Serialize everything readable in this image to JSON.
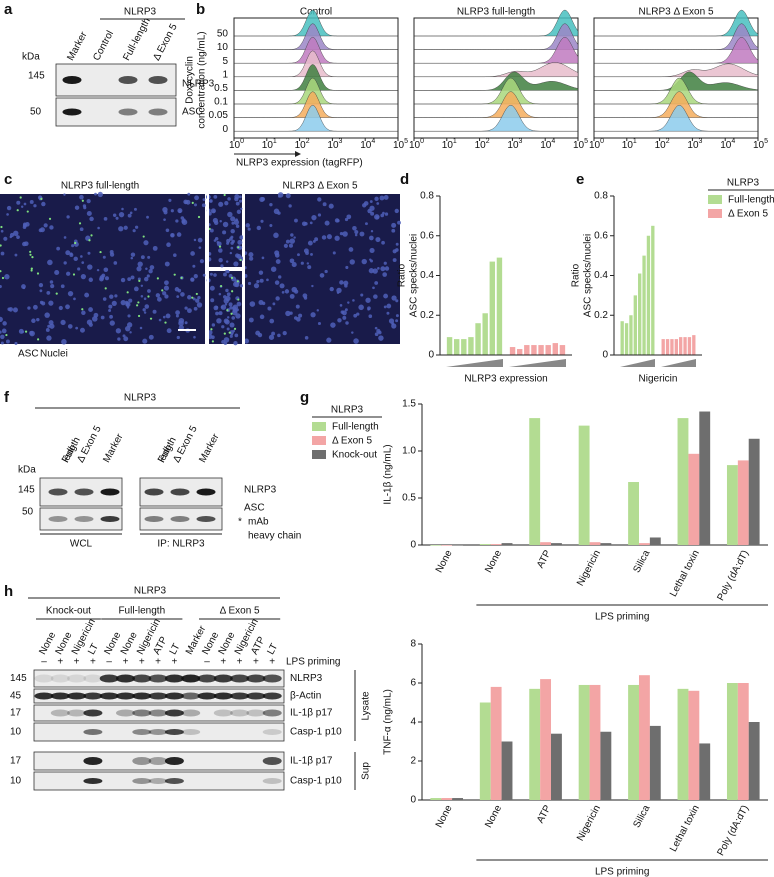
{
  "panel_labels": [
    "a",
    "b",
    "c",
    "d",
    "e",
    "f",
    "g",
    "h"
  ],
  "panel_a": {
    "group": "NLRP3",
    "lanes": [
      "Marker",
      "Control",
      "Full-length",
      "Δ Exon 5"
    ],
    "kda_label": "kDa",
    "markers": [
      "145",
      "50"
    ],
    "bands": [
      "NLRP3",
      "ASC"
    ]
  },
  "panel_b": {
    "y_axis_label": [
      "Doxycyclin",
      "concentration (ng/mL)"
    ],
    "x_axis_label": "NLRP3 expression (tagRFP)",
    "panels": [
      "Control",
      "NLRP3 full-length",
      "NLRP3 Δ Exon 5"
    ],
    "concentrations": [
      "50",
      "10",
      "5",
      "1",
      "0.5",
      "0.1",
      "0.05",
      "0"
    ],
    "x_tick_labels": [
      {
        "base": "10",
        "exponent": "0"
      },
      {
        "base": "10",
        "exponent": "1"
      },
      {
        "base": "10",
        "exponent": "2"
      },
      {
        "base": "10",
        "exponent": "3"
      },
      {
        "base": "10",
        "exponent": "4"
      },
      {
        "base": "10",
        "exponent": "5"
      }
    ]
  },
  "panel_c": {
    "titles": [
      "NLRP3 full-length",
      "NLRP3 Δ Exon 5"
    ],
    "stains": [
      "ASC",
      "Nuclei"
    ]
  },
  "panel_f": {
    "group": "NLRP3",
    "lanes": [
      [
        "Full-",
        "length"
      ],
      [
        "Δ Exon 5"
      ],
      [
        "Marker"
      ],
      [
        "Full-",
        "length"
      ],
      [
        "Δ Exon 5"
      ],
      [
        "Marker"
      ]
    ],
    "kda_label": "kDa",
    "markers": [
      "145",
      "50"
    ],
    "bands": [
      "NLRP3",
      "ASC"
    ],
    "asterisk": "*",
    "note": [
      "mAb",
      "heavy chain"
    ],
    "footers": [
      "WCL",
      "IP: NLRP3"
    ]
  },
  "panel_h": {
    "group": "NLRP3",
    "genotypes": [
      "Knock-out",
      "Full-length",
      "Δ Exon 5"
    ],
    "lanes": [
      "None",
      "None",
      "Nigericin",
      "LT",
      "None",
      "None",
      "Nigericin",
      "ATP",
      "LT",
      "Marker",
      "None",
      "None",
      "Nigericin",
      "ATP",
      "LT"
    ],
    "lps": [
      "–",
      "+",
      "+",
      "+",
      "–",
      "+",
      "+",
      "+",
      "+",
      null,
      "–",
      "+",
      "+",
      "+",
      "+"
    ],
    "lps_label": "LPS priming",
    "lysate_rows": [
      {
        "kda": "145",
        "label": "NLRP3"
      },
      {
        "kda": "45",
        "label": "β-Actin"
      },
      {
        "kda": "17",
        "label": "IL-1β p17"
      },
      {
        "kda": "10",
        "label": "Casp-1 p10"
      }
    ],
    "sup_rows": [
      {
        "kda": "17",
        "label": "IL-1β p17"
      },
      {
        "kda": "10",
        "label": "Casp-1 p10"
      }
    ],
    "sections": [
      "Lysate",
      "Sup"
    ]
  },
  "chart_data": [
    {
      "type": "bar",
      "y_axis_label": [
        "Ratio",
        "ASC specks/nuclei"
      ],
      "x_axis_label": "NLRP3 expression",
      "categories": [
        null,
        null,
        null,
        null,
        null,
        null,
        null,
        null
      ],
      "series": [
        {
          "color": "#b3dc92",
          "values": [
            0.09,
            0.08,
            0.08,
            0.09,
            0.16,
            0.21,
            0.47,
            0.49
          ]
        },
        {
          "color": "#f3a5a5",
          "values": [
            0.04,
            0.03,
            0.05,
            0.05,
            0.05,
            0.05,
            0.06,
            0.05
          ]
        }
      ],
      "ylim": [
        0,
        0.8
      ],
      "yticks": [
        0,
        0.2,
        0.4,
        0.6,
        0.8
      ]
    },
    {
      "type": "bar",
      "y_axis_label": [
        "Ratio",
        "ASC specks/nuclei"
      ],
      "x_axis_label": "Nigericin",
      "categories": [
        null,
        null,
        null,
        null,
        null,
        null,
        null,
        null
      ],
      "series": [
        {
          "name": "Full-length",
          "color": "#b3dc92",
          "values": [
            0.17,
            0.16,
            0.2,
            0.3,
            0.41,
            0.5,
            0.6,
            0.65
          ]
        },
        {
          "name": "Δ Exon 5",
          "color": "#f3a5a5",
          "values": [
            0.08,
            0.08,
            0.08,
            0.08,
            0.09,
            0.09,
            0.09,
            0.1
          ]
        }
      ],
      "ylim": [
        0,
        0.8
      ],
      "yticks": [
        0,
        0.2,
        0.4,
        0.6,
        0.8
      ],
      "legend_title": "NLRP3",
      "legend": "right"
    },
    {
      "type": "bar",
      "y_axis_label": "IL-1β (ng/mL)",
      "annotation": "LPS priming",
      "categories": [
        "None",
        "None",
        "ATP",
        "Nigericin",
        "Silica",
        "Lethal toxin",
        "Poly (dA:dT)"
      ],
      "series": [
        {
          "name": "Full-length",
          "color": "#b3dc92",
          "values": [
            0,
            0.01,
            1.35,
            1.27,
            0.67,
            1.35,
            0.85
          ]
        },
        {
          "name": "Δ Exon 5",
          "color": "#f3a5a5",
          "values": [
            0,
            0.01,
            0.03,
            0.03,
            0.02,
            0.97,
            0.9
          ]
        },
        {
          "name": "Knock-out",
          "color": "#6e6e6e",
          "values": [
            0,
            0.02,
            0.02,
            0.02,
            0.08,
            1.42,
            1.13
          ]
        }
      ],
      "ylim": [
        0,
        1.5
      ],
      "yticks": [
        0,
        0.5,
        {
          "value": 1,
          "label": "1.0"
        },
        1.5
      ],
      "legend_title": "NLRP3",
      "legend": "left"
    },
    {
      "type": "bar",
      "y_axis_label": "TNF-α (ng/mL)",
      "annotation": "LPS priming",
      "categories": [
        "None",
        "None",
        "ATP",
        "Nigericin",
        "Silica",
        "Lethal toxin",
        "Poly (dA:dT)"
      ],
      "series": [
        {
          "color": "#b3dc92",
          "values": [
            0.1,
            5.0,
            5.7,
            5.9,
            5.9,
            5.7,
            6.0
          ]
        },
        {
          "color": "#f3a5a5",
          "values": [
            0.1,
            5.8,
            6.2,
            5.9,
            6.4,
            5.6,
            6.0
          ]
        },
        {
          "color": "#6e6e6e",
          "values": [
            0.1,
            3.0,
            3.4,
            3.5,
            3.8,
            2.9,
            4.0
          ]
        }
      ],
      "ylim": [
        0,
        8
      ],
      "yticks": [
        0,
        2,
        4,
        6,
        8
      ]
    }
  ]
}
